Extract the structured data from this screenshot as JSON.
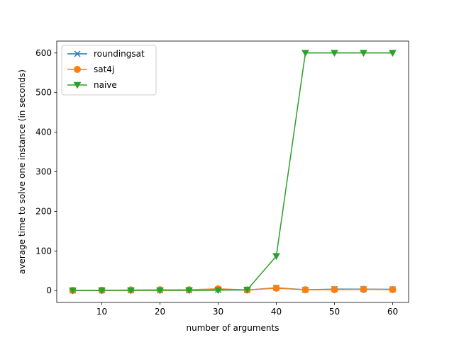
{
  "chart_data": {
    "type": "line",
    "title": "",
    "xlabel": "number of arguments",
    "ylabel": "average time to solve one instance (in seconds)",
    "xlim": [
      2.25,
      62.75
    ],
    "ylim": [
      -30,
      630
    ],
    "xticks": [
      10,
      20,
      30,
      40,
      50,
      60
    ],
    "yticks": [
      0,
      100,
      200,
      300,
      400,
      500,
      600
    ],
    "legend": "top-left",
    "grid": false,
    "x": [
      5,
      10,
      15,
      20,
      25,
      30,
      35,
      40,
      45,
      50,
      55,
      60
    ],
    "series": [
      {
        "name": "roundingsat",
        "color": "#1f77b4",
        "marker": "x",
        "values": [
          0.3,
          0.4,
          0.8,
          0.8,
          0.8,
          2.0,
          1.2,
          7.0,
          2.0,
          3.5,
          3.5,
          3.0
        ]
      },
      {
        "name": "sat4j",
        "color": "#ff7f0e",
        "marker": "circle",
        "values": [
          0.5,
          0.8,
          1.5,
          2.0,
          2.0,
          4.5,
          1.5,
          6.0,
          2.0,
          2.5,
          3.0,
          2.5
        ]
      },
      {
        "name": "naive",
        "color": "#2ca02c",
        "marker": "triangle-down",
        "values": [
          0.2,
          0.3,
          0.3,
          0.4,
          0.5,
          0.8,
          2.0,
          87,
          600,
          600,
          600,
          600
        ]
      }
    ]
  }
}
